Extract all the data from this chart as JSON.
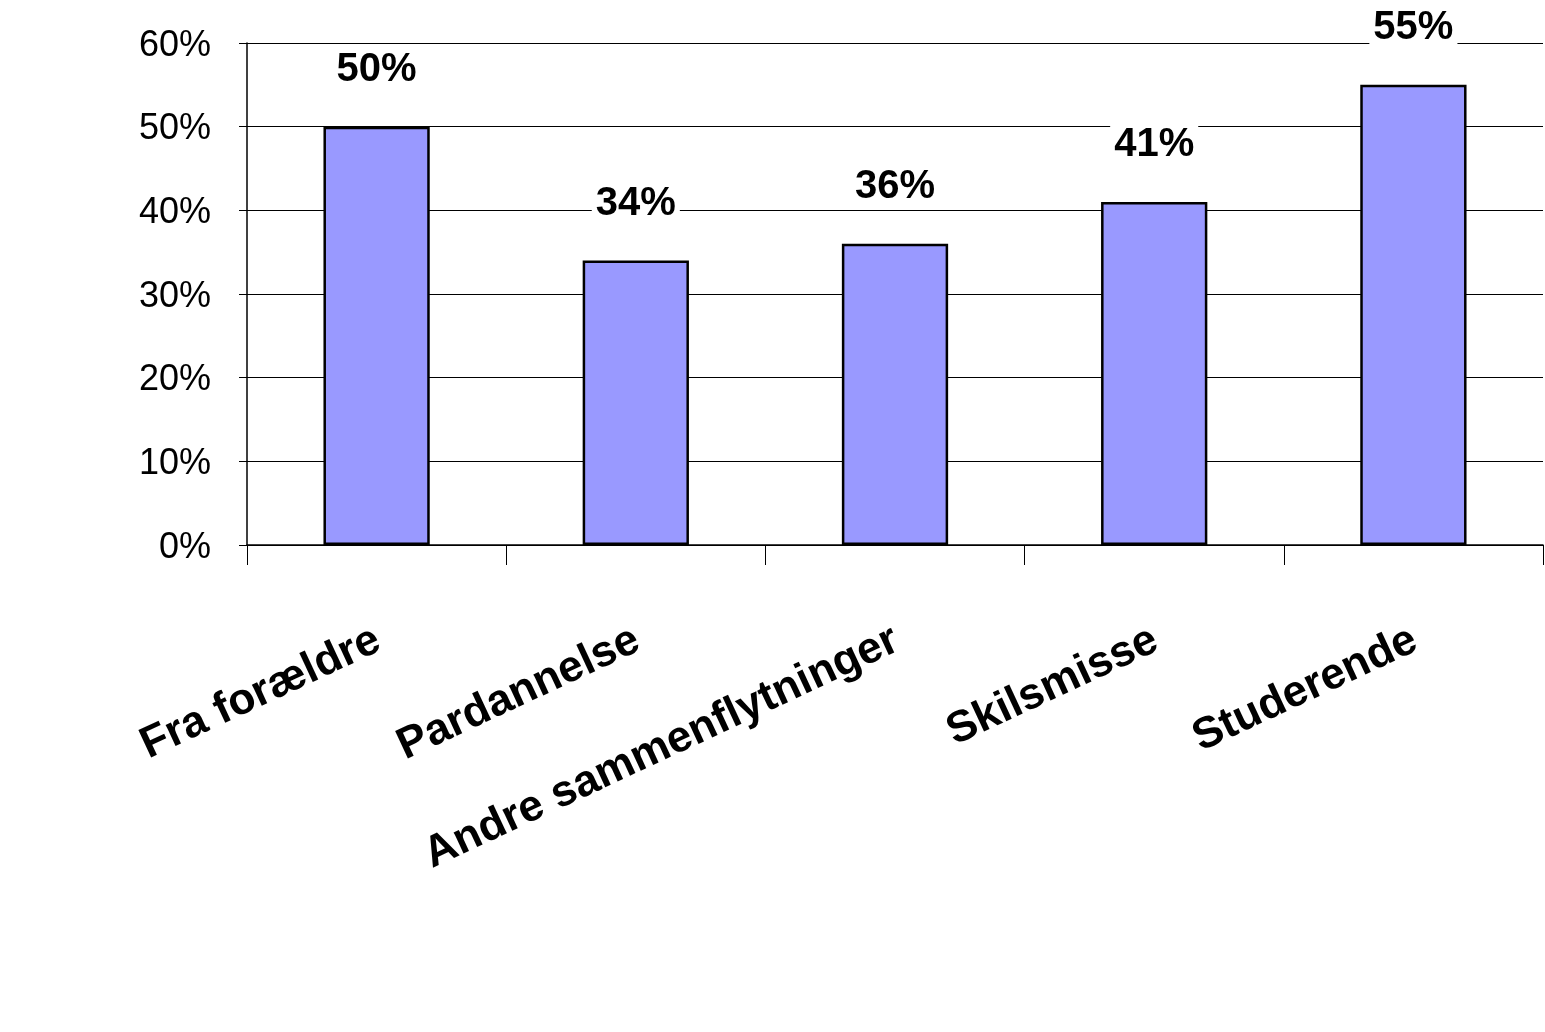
{
  "chart_data": {
    "type": "bar",
    "categories": [
      "Fra forældre",
      "Pardannelse",
      "Andre sammenflytninger",
      "Skilsmisse",
      "Studerende"
    ],
    "values": [
      50,
      34,
      36,
      41,
      55
    ],
    "value_labels": [
      "50%",
      "34%",
      "36%",
      "41%",
      "55%"
    ],
    "color": "#9999ff",
    "ylim": [
      0,
      60
    ],
    "yticks": [
      {
        "value": 0,
        "label": "0%"
      },
      {
        "value": 10,
        "label": "10%"
      },
      {
        "value": 20,
        "label": "20%"
      },
      {
        "value": 30,
        "label": "30%"
      },
      {
        "value": 40,
        "label": "40%"
      },
      {
        "value": 50,
        "label": "50%"
      },
      {
        "value": 60,
        "label": "60%"
      }
    ],
    "grid": "y"
  }
}
